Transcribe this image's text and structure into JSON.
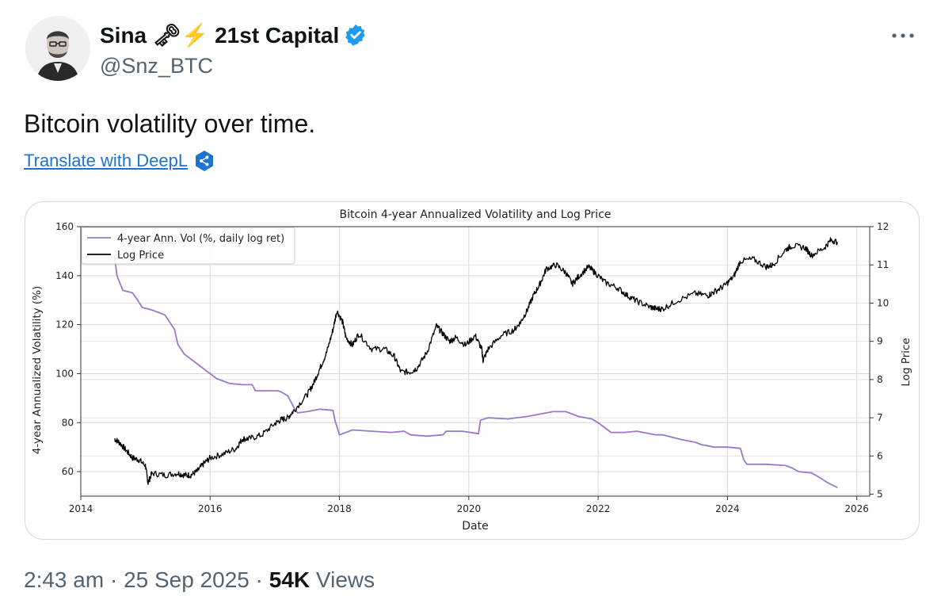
{
  "tweet": {
    "display_name": "Sina 🗝⚡ 21st Capital",
    "handle": "@Snz_BTC",
    "text": "Bitcoin volatility over time.",
    "translate_label": "Translate with DeepL",
    "time": "2:43 am",
    "date": "25 Sep 2025",
    "views_count": "54K",
    "views_label": "Views",
    "separator": "·"
  },
  "colors": {
    "verified": "#1d9bf0",
    "link": "#1d74d0",
    "vol_line": "#9a79c8",
    "price_line": "#000000"
  },
  "chart_data": {
    "type": "line",
    "title": "Bitcoin 4-year Annualized Volatility and Log Price",
    "xlabel": "Date",
    "ylabel_left": "4-year Annualized Volatility (%)",
    "ylabel_right": "Log Price",
    "x_ticks": [
      "2014",
      "2016",
      "2018",
      "2020",
      "2022",
      "2024",
      "2026"
    ],
    "y_left_ticks": [
      "60",
      "80",
      "100",
      "120",
      "140",
      "160"
    ],
    "y_right_ticks": [
      "5",
      "6",
      "7",
      "8",
      "9",
      "10",
      "11",
      "12"
    ],
    "xlim": [
      2014,
      2026.2
    ],
    "ylim_left": [
      50,
      160
    ],
    "ylim_right": [
      4.95,
      12
    ],
    "grid": true,
    "legend_position": "upper-left",
    "series": [
      {
        "name": "4-year Ann. Vol (%, daily log ret)",
        "axis": "left",
        "x": [
          2014.52,
          2014.56,
          2014.65,
          2014.8,
          2014.88,
          2014.95,
          2015.1,
          2015.3,
          2015.45,
          2015.5,
          2015.6,
          2015.8,
          2015.95,
          2016.1,
          2016.3,
          2016.5,
          2016.65,
          2016.7,
          2016.9,
          2017.05,
          2017.1,
          2017.2,
          2017.3,
          2017.35,
          2017.5,
          2017.7,
          2017.9,
          2017.93,
          2018.0,
          2018.2,
          2018.5,
          2018.8,
          2019.0,
          2019.1,
          2019.35,
          2019.6,
          2019.65,
          2019.9,
          2020.15,
          2020.18,
          2020.3,
          2020.6,
          2020.9,
          2021.1,
          2021.3,
          2021.5,
          2021.7,
          2021.9,
          2022.0,
          2022.1,
          2022.2,
          2022.4,
          2022.6,
          2022.8,
          2022.9,
          2023.0,
          2023.3,
          2023.5,
          2023.6,
          2023.8,
          2024.0,
          2024.2,
          2024.25,
          2024.3,
          2024.6,
          2024.9,
          2025.0,
          2025.1,
          2025.3,
          2025.4,
          2025.55,
          2025.7
        ],
        "y": [
          148,
          140,
          134,
          133,
          130,
          127,
          126,
          124,
          118,
          112,
          108,
          104,
          101,
          98,
          96,
          95.5,
          95.5,
          93,
          93,
          93,
          92.5,
          91,
          86,
          84,
          84.5,
          85.5,
          85,
          81,
          75,
          77,
          76.5,
          76,
          76.5,
          75,
          74.5,
          75,
          76.5,
          76.5,
          75.5,
          81,
          82,
          81.5,
          82.5,
          83.5,
          84.5,
          84.5,
          82.5,
          81.5,
          80,
          78,
          76,
          76,
          76.5,
          75.5,
          75,
          75,
          73,
          72,
          71,
          70,
          70,
          69.5,
          65,
          63,
          63,
          62.5,
          61.5,
          60,
          59.5,
          58,
          55.5,
          53.5
        ]
      },
      {
        "name": "Log Price",
        "axis": "right",
        "x": [
          2014.52,
          2014.6,
          2014.7,
          2014.8,
          2014.9,
          2015.0,
          2015.04,
          2015.1,
          2015.3,
          2015.5,
          2015.6,
          2015.7,
          2015.8,
          2015.9,
          2016.0,
          2016.2,
          2016.4,
          2016.5,
          2016.6,
          2016.8,
          2017.0,
          2017.1,
          2017.2,
          2017.3,
          2017.5,
          2017.6,
          2017.7,
          2017.8,
          2017.9,
          2017.96,
          2018.05,
          2018.1,
          2018.2,
          2018.3,
          2018.5,
          2018.7,
          2018.85,
          2018.95,
          2019.1,
          2019.2,
          2019.35,
          2019.5,
          2019.6,
          2019.7,
          2019.8,
          2019.95,
          2020.1,
          2020.2,
          2020.22,
          2020.3,
          2020.5,
          2020.7,
          2020.8,
          2020.9,
          2021.0,
          2021.1,
          2021.2,
          2021.35,
          2021.5,
          2021.6,
          2021.7,
          2021.85,
          2021.95,
          2022.1,
          2022.3,
          2022.45,
          2022.6,
          2022.8,
          2022.9,
          2023.0,
          2023.2,
          2023.5,
          2023.7,
          2023.8,
          2023.95,
          2024.1,
          2024.2,
          2024.4,
          2024.6,
          2024.7,
          2024.9,
          2025.0,
          2025.2,
          2025.3,
          2025.5,
          2025.6,
          2025.7
        ],
        "y": [
          6.45,
          6.35,
          6.15,
          5.95,
          5.9,
          5.75,
          5.3,
          5.55,
          5.5,
          5.55,
          5.5,
          5.5,
          5.6,
          5.8,
          5.95,
          6.05,
          6.2,
          6.45,
          6.45,
          6.55,
          6.85,
          6.95,
          7.0,
          7.2,
          7.6,
          7.9,
          8.3,
          8.7,
          9.3,
          9.8,
          9.5,
          9.1,
          8.9,
          9.2,
          8.8,
          8.8,
          8.6,
          8.2,
          8.2,
          8.3,
          8.7,
          9.4,
          9.2,
          9.0,
          9.1,
          8.9,
          9.15,
          8.8,
          8.5,
          8.8,
          9.15,
          9.3,
          9.5,
          9.8,
          10.2,
          10.5,
          10.9,
          11.0,
          10.8,
          10.5,
          10.7,
          10.95,
          10.8,
          10.55,
          10.4,
          10.2,
          10.05,
          9.9,
          9.85,
          9.85,
          10.05,
          10.25,
          10.2,
          10.3,
          10.45,
          10.7,
          11.1,
          11.15,
          10.95,
          11.0,
          11.4,
          11.5,
          11.45,
          11.25,
          11.45,
          11.65,
          11.6
        ]
      }
    ]
  }
}
